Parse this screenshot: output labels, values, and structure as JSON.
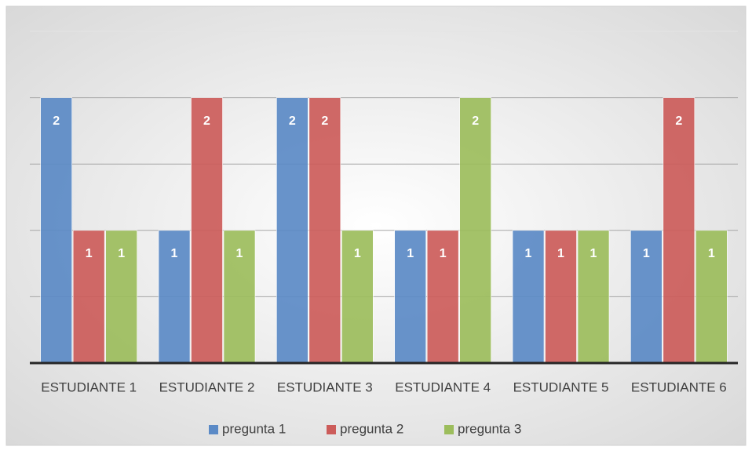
{
  "chart_data": {
    "type": "bar",
    "categories": [
      "ESTUDIANTE 1",
      "ESTUDIANTE 2",
      "ESTUDIANTE 3",
      "ESTUDIANTE 4",
      "ESTUDIANTE 5",
      "ESTUDIANTE 6"
    ],
    "series": [
      {
        "name": "pregunta 1",
        "color": "#5b8ac6",
        "values": [
          2,
          1,
          2,
          1,
          1,
          1
        ]
      },
      {
        "name": "pregunta 2",
        "color": "#cc5c5a",
        "values": [
          1,
          2,
          2,
          1,
          1,
          2
        ]
      },
      {
        "name": "pregunta 3",
        "color": "#9cbd5c",
        "values": [
          1,
          1,
          1,
          2,
          1,
          1
        ]
      }
    ],
    "ylim": [
      0,
      2.5
    ],
    "yticks": [
      0,
      0.5,
      1,
      1.5,
      2,
      2.5
    ],
    "grid": true,
    "legend": "bottom"
  }
}
